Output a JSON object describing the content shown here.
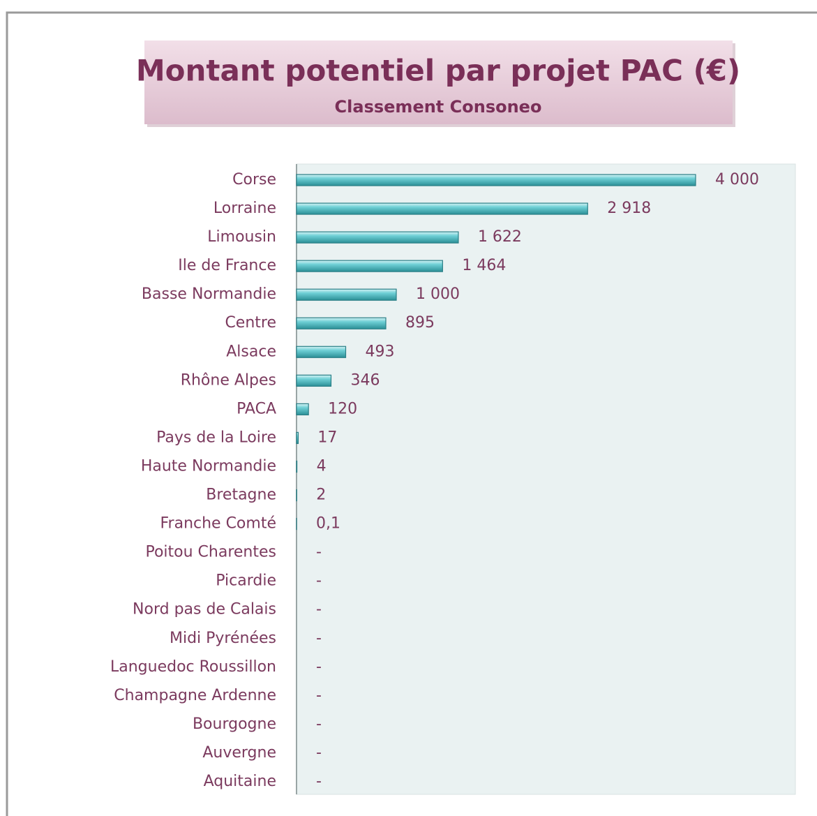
{
  "chart_data": {
    "type": "barh",
    "title": "Montant potentiel par projet PAC (€)",
    "subtitle": "Classement Consoneo",
    "categories": [
      "Corse",
      "Lorraine",
      "Limousin",
      "Ile de France",
      "Basse Normandie",
      "Centre",
      "Alsace",
      "Rhône Alpes",
      "PACA",
      "Pays de la Loire",
      "Haute Normandie",
      "Bretagne",
      "Franche Comté",
      "Poitou Charentes",
      "Picardie",
      "Nord pas de Calais",
      "Midi Pyrénées",
      "Languedoc Roussillon",
      "Champagne Ardenne",
      "Bourgogne",
      "Auvergne",
      "Aquitaine"
    ],
    "values": [
      4000,
      2918,
      1622,
      1464,
      1000,
      895,
      493,
      346,
      120,
      17,
      4,
      2,
      0.1,
      0,
      0,
      0,
      0,
      0,
      0,
      0,
      0,
      0
    ],
    "value_labels": [
      "4 000",
      "2 918",
      "1 622",
      "1 464",
      "1 000",
      "895",
      "493",
      "346",
      "120",
      "17",
      "4",
      "2",
      "0,1",
      "-",
      "-",
      "-",
      "-",
      "-",
      "-",
      "-",
      "-",
      "-"
    ],
    "color": "#4fc1c9",
    "xlim": [
      0,
      5000
    ]
  }
}
